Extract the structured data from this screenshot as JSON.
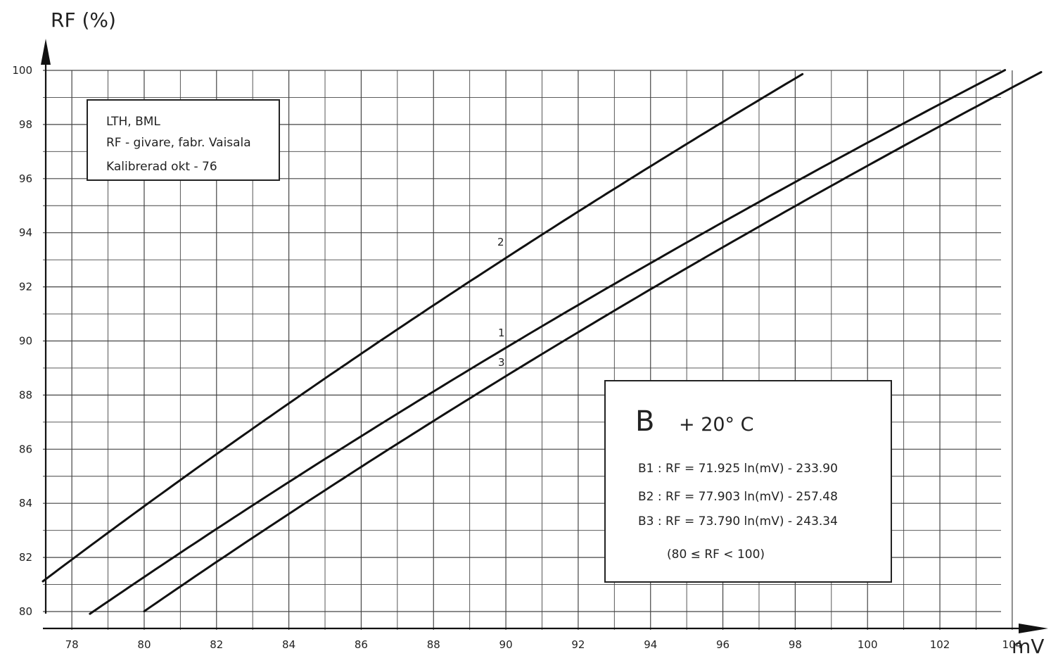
{
  "chart_data": {
    "type": "line",
    "ylabel": "RF (%)",
    "xlabel": "mV",
    "xlim": [
      77.2,
      104.8
    ],
    "ylim": [
      80,
      100
    ],
    "x_ticks": [
      "78",
      "80",
      "82",
      "84",
      "86",
      "88",
      "90",
      "92",
      "94",
      "96",
      "98",
      "100",
      "102",
      "104"
    ],
    "y_ticks": [
      "80",
      "82",
      "84",
      "86",
      "88",
      "90",
      "92",
      "94",
      "96",
      "98",
      "100"
    ],
    "grid": true,
    "series": [
      {
        "name": "1",
        "curve": [
          71.925,
          -233.9
        ],
        "x_range": [
          78.5,
          103.8
        ]
      },
      {
        "name": "2",
        "curve": [
          77.903,
          -257.48
        ],
        "x_range": [
          77.2,
          98.2
        ]
      },
      {
        "name": "3",
        "curve": [
          73.79,
          -243.34
        ],
        "x_range": [
          80.0,
          104.8
        ]
      }
    ],
    "info_box": {
      "line1": "LTH,  BML",
      "line2": "RF - givare,  fabr. Vaisala",
      "line3": "Kalibrerad   okt - 76"
    },
    "formula_box": {
      "title": "B",
      "temp": "+ 20° C",
      "eq1": "B1 : RF = 71.925 ln(mV) - 233.90",
      "eq2": "B2 : RF = 77.903 ln(mV) - 257.48",
      "eq3": "B3 : RF = 73.790 ln(mV) - 243.34",
      "range": "(80 ≤ RF < 100)"
    }
  }
}
